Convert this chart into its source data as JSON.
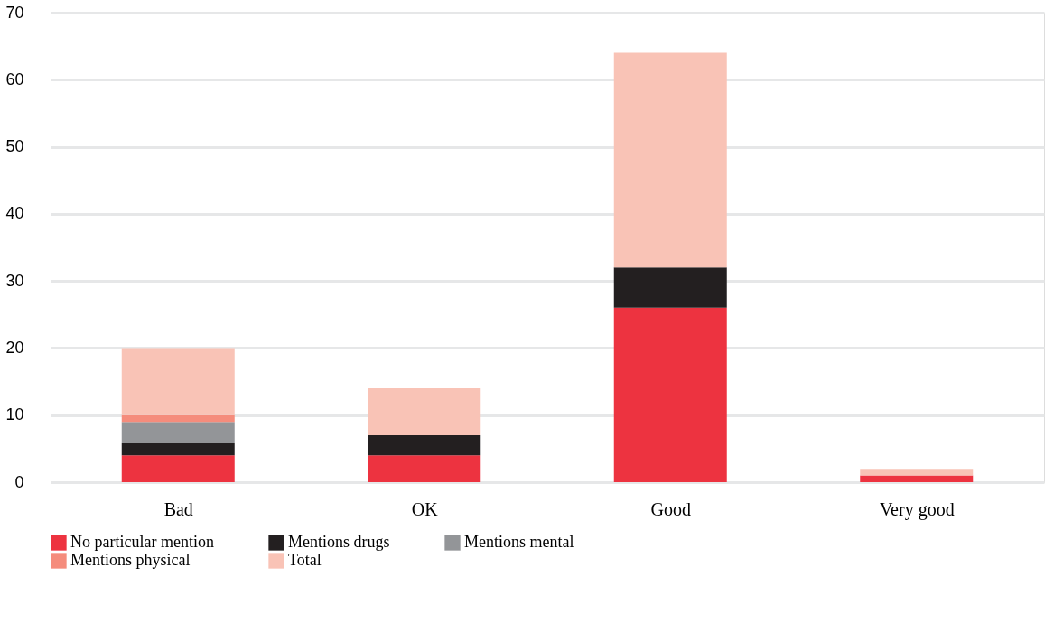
{
  "chart_data": {
    "type": "bar",
    "stacked": true,
    "categories": [
      "Bad",
      "OK",
      "Good",
      "Very good"
    ],
    "series": [
      {
        "name": "No particular mention",
        "color": "#ed3340",
        "values": [
          4,
          4,
          26,
          1
        ]
      },
      {
        "name": "Mentions drugs",
        "color": "#231f20",
        "values": [
          1.8,
          3,
          6,
          0
        ]
      },
      {
        "name": "Mentions mental",
        "color": "#939598",
        "values": [
          3.2,
          0,
          0,
          0
        ]
      },
      {
        "name": "Mentions physical",
        "color": "#f58c7c",
        "values": [
          1,
          0,
          0,
          0
        ]
      },
      {
        "name": "Total",
        "color": "#f9c3b6",
        "values": [
          10,
          7,
          32,
          1
        ]
      }
    ],
    "ylim": [
      0,
      70
    ],
    "yticks": [
      0,
      10,
      20,
      30,
      40,
      50,
      60,
      70
    ],
    "grid": "y",
    "legend": "bottom"
  }
}
